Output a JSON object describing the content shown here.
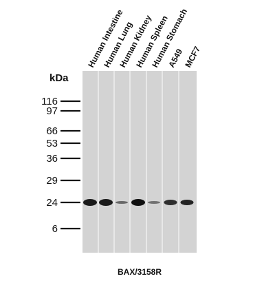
{
  "unit_label": "kDa",
  "caption": "BAX/3158R",
  "colors": {
    "membrane": "#d3d3d3",
    "lane_separator": "#f0f0f0",
    "band": "#101010",
    "marker_tick": "#111111"
  },
  "lanes": [
    {
      "label": "Human Intestine",
      "band_intensity": 0.95,
      "band_width": "thick"
    },
    {
      "label": "Human Lung",
      "band_intensity": 0.95,
      "band_width": "thick"
    },
    {
      "label": "Human Kidney",
      "band_intensity": 0.55,
      "band_width": "thin"
    },
    {
      "label": "Human Spleen",
      "band_intensity": 1.0,
      "band_width": "thick"
    },
    {
      "label": "Human Stomach",
      "band_intensity": 0.5,
      "band_width": "thin"
    },
    {
      "label": "A549",
      "band_intensity": 0.85,
      "band_width": "medium"
    },
    {
      "label": "MCF7",
      "band_intensity": 0.9,
      "band_width": "medium"
    }
  ],
  "markers": [
    "116",
    "97",
    "66",
    "53",
    "36",
    "29",
    "24",
    "6"
  ]
}
